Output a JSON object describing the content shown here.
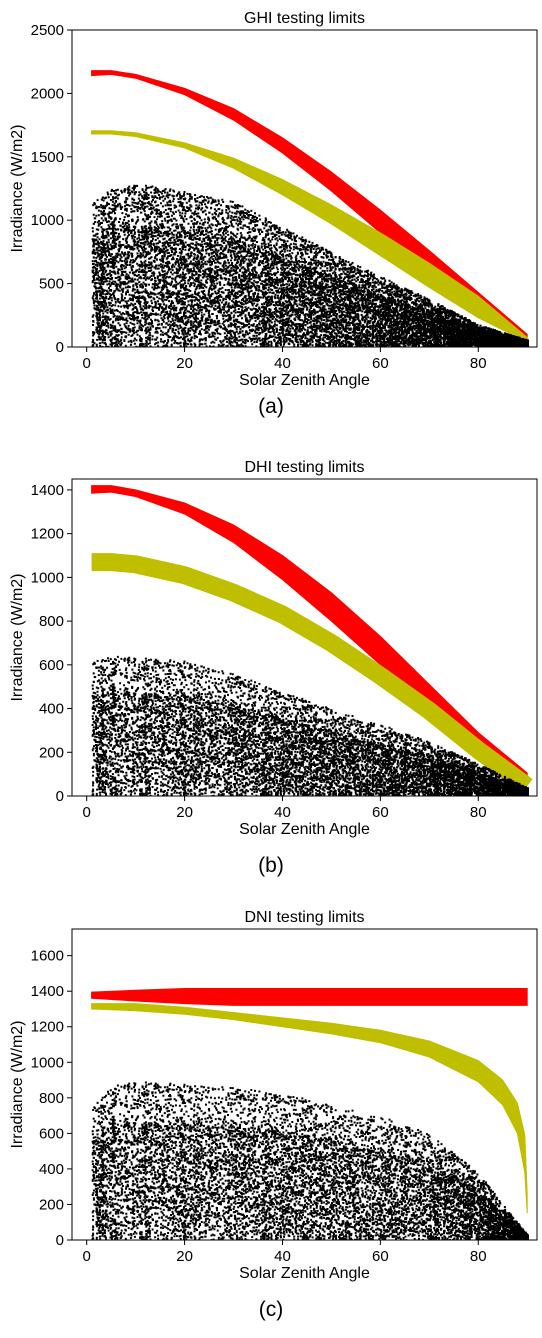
{
  "chart_data": [
    {
      "type": "scatter",
      "title": "GHI testing limits",
      "xlabel": "Solar Zenith Angle",
      "ylabel": "Irradiance (W/m2)",
      "xlim": [
        -3,
        92
      ],
      "ylim": [
        0,
        2500
      ],
      "xticks": [
        0,
        20,
        40,
        60,
        80
      ],
      "yticks": [
        0,
        500,
        1000,
        1500,
        2000,
        2500
      ],
      "grid": false,
      "caption": "(a)",
      "series": [
        {
          "color": "#ff0000",
          "band": {
            "x": [
              1,
              5,
              10,
              20,
              30,
              40,
              50,
              60,
              70,
              80,
              90
            ],
            "upper": [
              2180,
              2180,
              2150,
              2040,
              1880,
              1650,
              1380,
              1080,
              760,
              430,
              100
            ],
            "lower": [
              2140,
              2150,
              2120,
              1990,
              1790,
              1530,
              1230,
              900,
              570,
              260,
              70
            ]
          }
        },
        {
          "color": "#bfbf00",
          "band": {
            "x": [
              1,
              5,
              10,
              20,
              30,
              40,
              50,
              60,
              70,
              80,
              90
            ],
            "upper": [
              1705,
              1705,
              1690,
              1610,
              1490,
              1320,
              1120,
              900,
              660,
              400,
              75
            ],
            "lower": [
              1680,
              1680,
              1660,
              1570,
              1410,
              1200,
              970,
              720,
              470,
              230,
              40
            ]
          }
        },
        {
          "color": "#000000",
          "points": "observations",
          "envelope": {
            "x": [
              1,
              5,
              10,
              20,
              30,
              40,
              50,
              60,
              70,
              80,
              90
            ],
            "max": [
              1150,
              1250,
              1300,
              1230,
              1150,
              950,
              750,
              560,
              380,
              180,
              60
            ]
          }
        }
      ]
    },
    {
      "type": "scatter",
      "title": "DHI testing limits",
      "xlabel": "Solar Zenith Angle",
      "ylabel": "Irradiance (W/m2)",
      "xlim": [
        -3,
        92
      ],
      "ylim": [
        0,
        1450
      ],
      "xticks": [
        0,
        20,
        40,
        60,
        80
      ],
      "yticks": [
        0,
        200,
        400,
        600,
        800,
        1000,
        1200,
        1400
      ],
      "grid": false,
      "caption": "(b)",
      "series": [
        {
          "color": "#ff0000",
          "band": {
            "x": [
              1,
              5,
              10,
              20,
              30,
              40,
              50,
              60,
              70,
              80,
              90
            ],
            "upper": [
              1420,
              1420,
              1400,
              1340,
              1240,
              1100,
              930,
              730,
              510,
              290,
              105
            ],
            "lower": [
              1385,
              1390,
              1370,
              1290,
              1160,
              990,
              800,
              600,
              390,
              200,
              85
            ]
          }
        },
        {
          "color": "#bfbf00",
          "band": {
            "x": [
              1,
              5,
              10,
              20,
              30,
              40,
              50,
              60,
              70,
              80,
              90
            ],
            "upper": [
              1070,
              1070,
              1060,
              1010,
              930,
              830,
              700,
              550,
              390,
              210,
              45
            ]
          }
        },
        {
          "color": "#000000",
          "points": "observations",
          "envelope": {
            "x": [
              1,
              5,
              10,
              20,
              30,
              40,
              50,
              60,
              70,
              80,
              90
            ],
            "max": [
              620,
              650,
              640,
              620,
              560,
              480,
              400,
              330,
              250,
              150,
              40
            ]
          }
        }
      ]
    },
    {
      "type": "scatter",
      "title": "DNI testing limits",
      "xlabel": "Solar Zenith Angle",
      "ylabel": "Irradiance (W/m2)",
      "xlim": [
        -3,
        92
      ],
      "ylim": [
        0,
        1750
      ],
      "xticks": [
        0,
        20,
        40,
        60,
        80
      ],
      "yticks": [
        0,
        200,
        400,
        600,
        800,
        1000,
        1200,
        1400,
        1600
      ],
      "grid": false,
      "caption": "(c)",
      "series": [
        {
          "color": "#ff0000",
          "band": {
            "x": [
              1,
              10,
              20,
              30,
              60,
              90
            ],
            "upper": [
              1395,
              1405,
              1415,
              1415,
              1415,
              1415
            ],
            "lower": [
              1360,
              1345,
              1330,
              1320,
              1320,
              1320
            ]
          }
        },
        {
          "color": "#bfbf00",
          "band": {
            "x": [
              1,
              10,
              20,
              30,
              40,
              50,
              60,
              70,
              80,
              85,
              88,
              89.5,
              90
            ],
            "upper": [
              1330,
              1330,
              1310,
              1280,
              1250,
              1220,
              1180,
              1120,
              1010,
              900,
              770,
              590,
              260
            ],
            "lower": [
              1300,
              1290,
              1270,
              1240,
              1200,
              1160,
              1110,
              1030,
              890,
              760,
              600,
              380,
              150
            ]
          }
        },
        {
          "color": "#000000",
          "points": "observations",
          "envelope": {
            "x": [
              1,
              5,
              10,
              20,
              30,
              40,
              50,
              60,
              70,
              80,
              85,
              90
            ],
            "max": [
              750,
              880,
              900,
              880,
              860,
              830,
              760,
              700,
              600,
              380,
              200,
              30
            ]
          }
        }
      ]
    }
  ]
}
